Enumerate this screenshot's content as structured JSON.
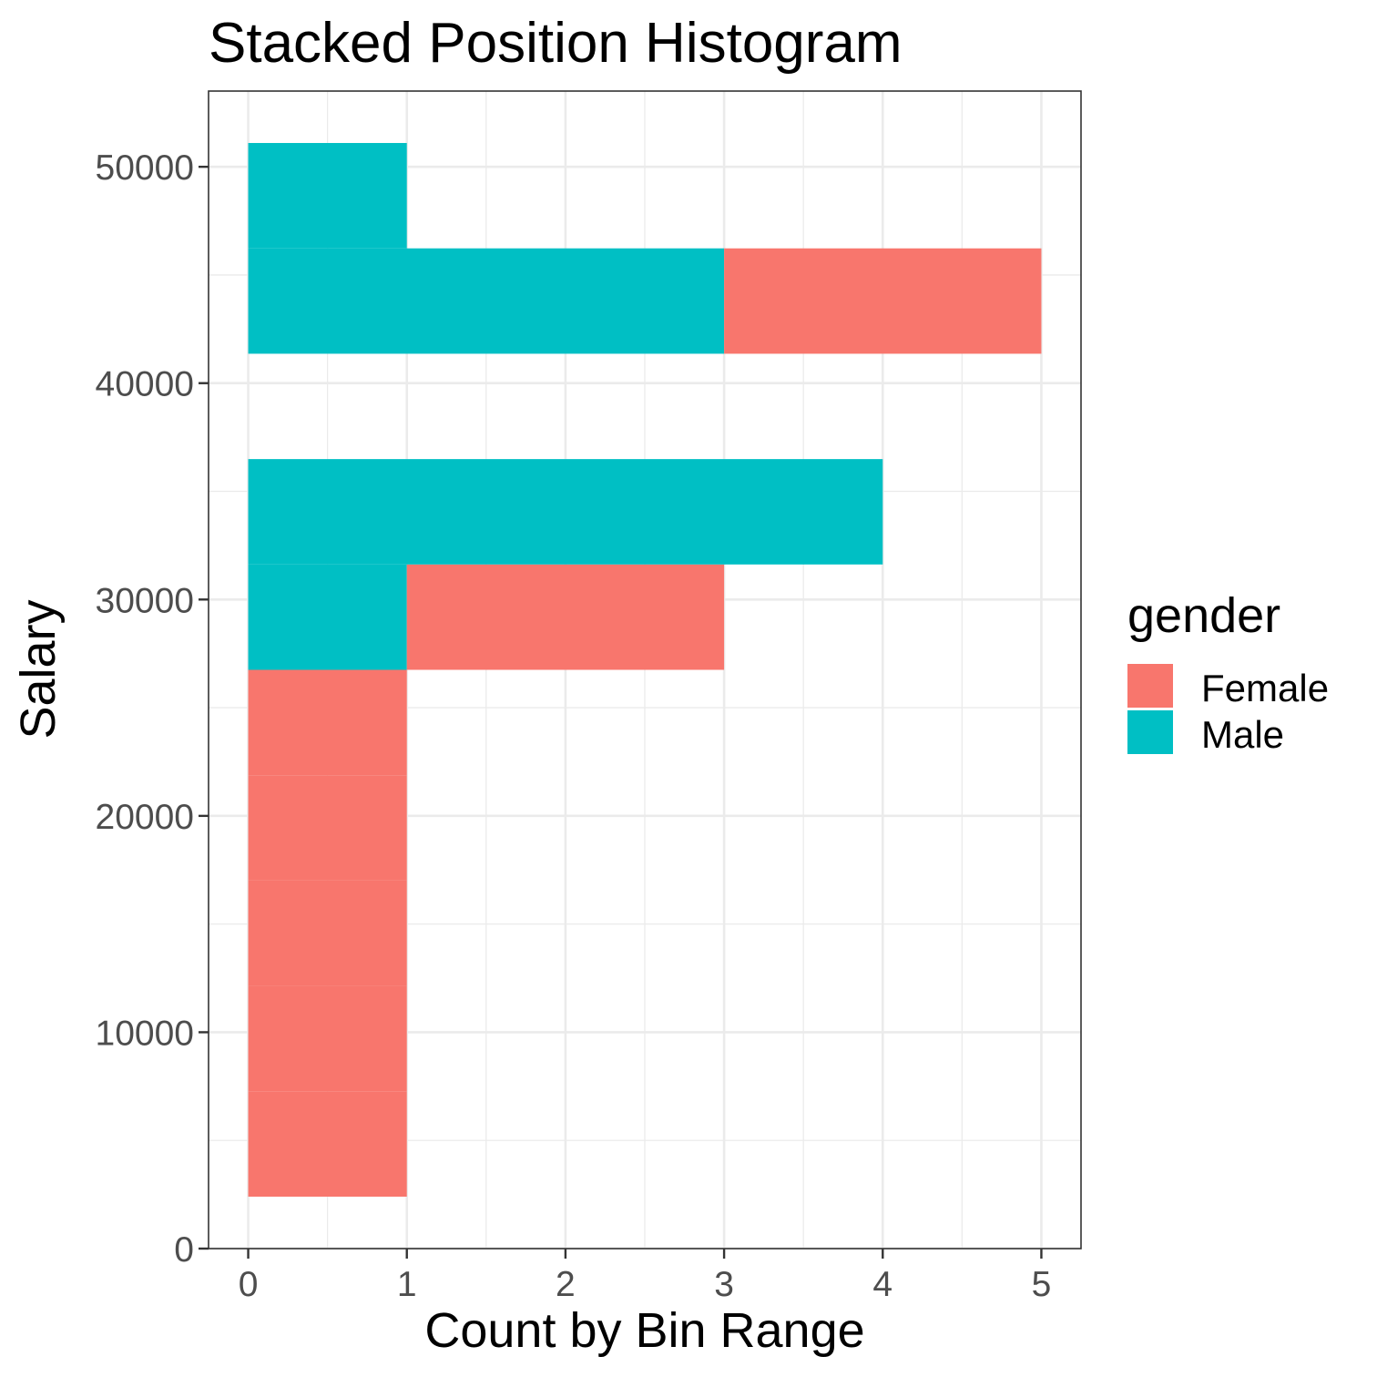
{
  "chart_data": {
    "type": "bar",
    "orientation": "horizontal",
    "position": "stack",
    "title": "Stacked Position Histogram",
    "xlabel": "Count by Bin Range",
    "ylabel": "Salary",
    "xlim": [
      -0.25,
      5.25
    ],
    "ylim": [
      0,
      53500
    ],
    "x_ticks": [
      0,
      1,
      2,
      3,
      4,
      5
    ],
    "x_tick_labels": [
      "0",
      "1",
      "2",
      "3",
      "4",
      "5"
    ],
    "y_ticks": [
      0,
      10000,
      20000,
      30000,
      40000,
      50000
    ],
    "y_tick_labels": [
      "0",
      "10000",
      "20000",
      "30000",
      "40000",
      "50000"
    ],
    "grid": true,
    "legend": {
      "title": "gender",
      "placement": "right",
      "entries": [
        "Female",
        "Male"
      ]
    },
    "colors": {
      "Female": "#F8766D",
      "Male": "#00BFC4"
    },
    "bins": [
      {
        "from": 2400,
        "to": 7270
      },
      {
        "from": 7270,
        "to": 12140
      },
      {
        "from": 12140,
        "to": 17010
      },
      {
        "from": 17010,
        "to": 21880
      },
      {
        "from": 21880,
        "to": 26750
      },
      {
        "from": 26750,
        "to": 31620
      },
      {
        "from": 31620,
        "to": 36490
      },
      {
        "from": 36490,
        "to": 41360
      },
      {
        "from": 41360,
        "to": 46230
      },
      {
        "from": 46230,
        "to": 51100
      }
    ],
    "series": [
      {
        "name": "Female",
        "values": [
          1,
          1,
          1,
          1,
          1,
          2,
          0,
          0,
          2,
          0
        ]
      },
      {
        "name": "Male",
        "values": [
          0,
          0,
          0,
          0,
          0,
          1,
          4,
          0,
          3,
          1
        ]
      }
    ]
  }
}
